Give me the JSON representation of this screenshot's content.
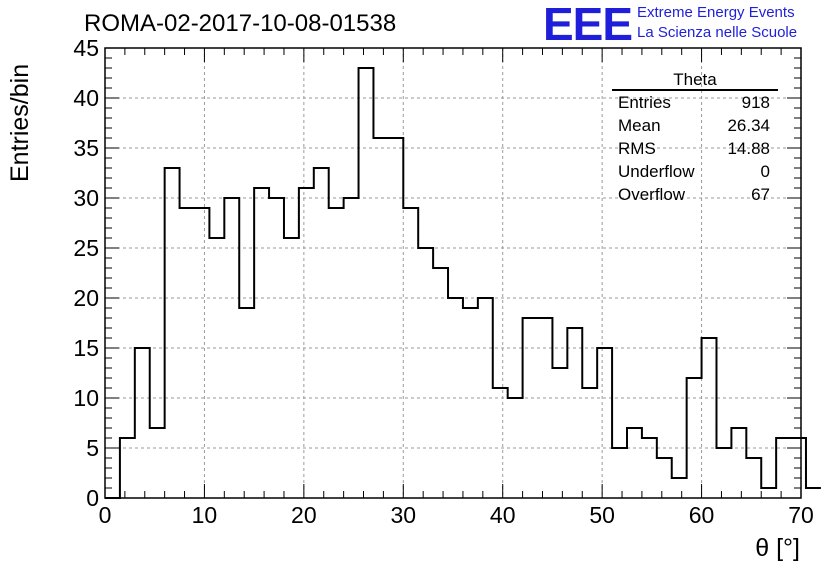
{
  "chart_data": {
    "type": "bar",
    "title": "ROMA-02-2017-10-08-01538",
    "xlabel": "θ [°]",
    "ylabel": "Entries/bin",
    "xlim": [
      0,
      70
    ],
    "ylim": [
      0,
      45
    ],
    "grid": true,
    "x_ticks": [
      0,
      10,
      20,
      30,
      40,
      50,
      60,
      70
    ],
    "y_ticks": [
      0,
      5,
      10,
      15,
      20,
      25,
      30,
      35,
      40,
      45
    ],
    "bin_edges_start": 0,
    "bin_width": 1.5,
    "values": [
      0,
      6,
      15,
      7,
      33,
      29,
      29,
      26,
      30,
      19,
      31,
      30,
      26,
      31,
      33,
      29,
      30,
      43,
      36,
      36,
      29,
      25,
      23,
      20,
      19,
      20,
      11,
      10,
      18,
      18,
      13,
      17,
      11,
      15,
      5,
      7,
      6,
      4,
      2,
      12,
      16,
      5,
      7,
      4,
      1,
      6,
      6,
      1
    ],
    "stats_box": {
      "title": "Theta",
      "placement": "top-right",
      "rows": [
        {
          "key": "Entries",
          "value": "918"
        },
        {
          "key": "Mean",
          "value": "26.34"
        },
        {
          "key": "RMS",
          "value": "14.88"
        },
        {
          "key": "Underflow",
          "value": "0"
        },
        {
          "key": "Overflow",
          "value": "67"
        }
      ]
    }
  },
  "logo": {
    "mark": "EEE",
    "line1": "Extreme Energy Events",
    "line2": "La Scienza nelle Scuole",
    "color": "#1f1fd9"
  }
}
